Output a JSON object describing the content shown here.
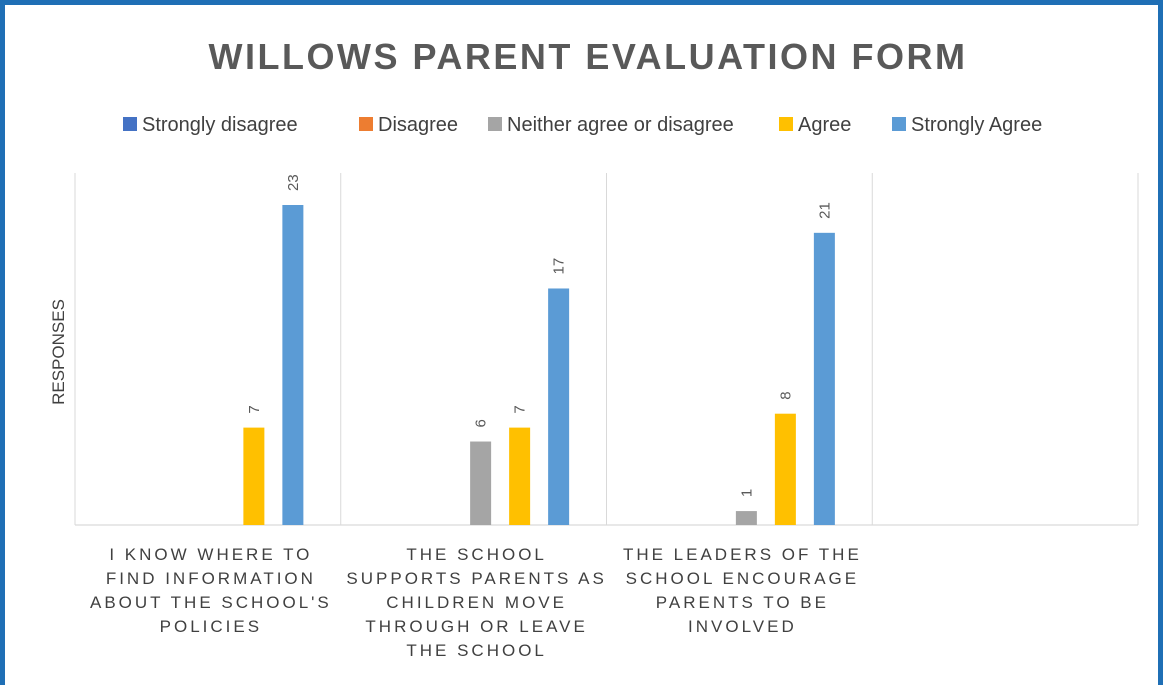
{
  "chart_data": {
    "type": "bar",
    "title": "WILLOWS PARENT EVALUATION FORM",
    "ylabel": "RESPONSES",
    "xlabel": "",
    "categories": [
      [
        "I KNOW WHERE TO",
        "FIND INFORMATION",
        "ABOUT THE SCHOOL'S",
        "POLICIES"
      ],
      [
        "THE SCHOOL",
        "SUPPORTS PARENTS AS",
        "CHILDREN MOVE",
        "THROUGH OR LEAVE",
        "THE SCHOOL"
      ],
      [
        "THE LEADERS OF THE",
        "SCHOOL ENCOURAGE",
        "PARENTS TO BE",
        "INVOLVED"
      ],
      []
    ],
    "series": [
      {
        "name": "Strongly disagree",
        "color": "#4472c4",
        "values": [
          null,
          null,
          null,
          null
        ]
      },
      {
        "name": "Disagree",
        "color": "#ed7d31",
        "values": [
          null,
          null,
          null,
          null
        ]
      },
      {
        "name": "Neither agree or disagree",
        "color": "#a5a5a5",
        "values": [
          null,
          6,
          1,
          null
        ]
      },
      {
        "name": "Agree",
        "color": "#ffc000",
        "values": [
          7,
          7,
          8,
          null
        ]
      },
      {
        "name": "Strongly Agree",
        "color": "#5b9bd5",
        "values": [
          23,
          17,
          21,
          null
        ]
      }
    ],
    "ylim": [
      0,
      25
    ],
    "legend_position": "top",
    "grid": "vertical-category-separators"
  }
}
